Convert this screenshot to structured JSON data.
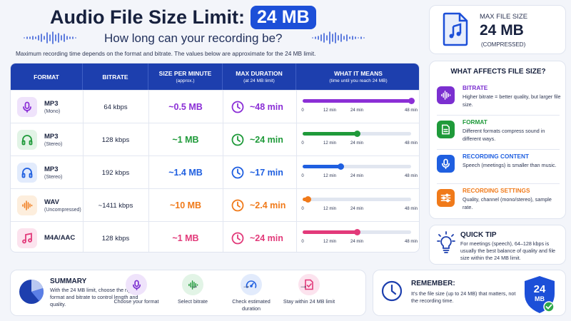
{
  "header": {
    "title": "Audio File Size Limit:",
    "title_pill": "24 MB",
    "subtitle": "How long can your recording be?",
    "intro": "Maximum recording time depends on the format and bitrate. The values below are approximate for the 24 MB limit."
  },
  "max_card": {
    "label": "MAX FILE SIZE",
    "value": "24 MB",
    "note": "(COMPRESSED)"
  },
  "table": {
    "headers": {
      "format": "FORMAT",
      "bitrate": "BITRATE",
      "size": "SIZE PER MINUTE",
      "size_sub": "(approx.)",
      "duration": "MAX DURATION",
      "duration_sub": "(at 24 MB limit)",
      "means": "WHAT IT MEANS",
      "means_sub": "(time until you reach 24 MB)"
    },
    "tick_labels": [
      "0",
      "12 min",
      "24 min",
      "48 min"
    ],
    "rows": [
      {
        "format": "MP3",
        "sub": "(Mono)",
        "bitrate": "64 kbps",
        "size": "~0.5 MB",
        "duration": "~48 min",
        "fraction": 1.0,
        "color": "#8b2fd6",
        "tint": "#efe3fb",
        "icon": "microphone-icon"
      },
      {
        "format": "MP3",
        "sub": "(Stereo)",
        "bitrate": "128 kbps",
        "size": "~1 MB",
        "duration": "~24 min",
        "fraction": 0.5,
        "color": "#1f9a3a",
        "tint": "#e2f4e6",
        "icon": "headphones-icon"
      },
      {
        "format": "MP3",
        "sub": "(Stereo)",
        "bitrate": "192 kbps",
        "size": "~1.4 MB",
        "duration": "~17 min",
        "fraction": 0.354,
        "color": "#1f5fe0",
        "tint": "#e2ebfc",
        "icon": "headphones-icon"
      },
      {
        "format": "WAV",
        "sub": "(Uncompressed)",
        "bitrate": "~1411 kbps",
        "size": "~10 MB",
        "duration": "~2.4 min",
        "fraction": 0.05,
        "color": "#f07a1a",
        "tint": "#fdeedd",
        "icon": "waveform-icon"
      },
      {
        "format": "M4A/AAC",
        "sub": "",
        "bitrate": "128 kbps",
        "size": "~1 MB",
        "duration": "~24 min",
        "fraction": 0.5,
        "color": "#e23a7a",
        "tint": "#fce3ee",
        "icon": "music-note-icon"
      }
    ]
  },
  "affects": {
    "title": "WHAT AFFECTS FILE SIZE?",
    "items": [
      {
        "title": "BITRATE",
        "desc": "Higher bitrate = better quality, but larger file size.",
        "color": "#7b2fd0",
        "icon": "waveform-icon"
      },
      {
        "title": "FORMAT",
        "desc": "Different formats compress sound in different ways.",
        "color": "#1f9a3a",
        "icon": "document-icon"
      },
      {
        "title": "RECORDING CONTENT",
        "desc": "Speech (meetings) is smaller than music.",
        "color": "#1f5fe0",
        "icon": "microphone-icon"
      },
      {
        "title": "RECORDING SETTINGS",
        "desc": "Quality, channel (mono/stereo), sample rate.",
        "color": "#f07a1a",
        "icon": "sliders-icon"
      }
    ]
  },
  "tip": {
    "title": "QUICK TIP",
    "desc": "For meetings (speech), 64–128 kbps is usually the best balance of quality and file size within the 24 MB limit."
  },
  "summary": {
    "title": "SUMMARY",
    "desc": "With the 24 MB limit, choose the right format and bitrate to control length and quality.",
    "steps": [
      {
        "label": "Choose your format",
        "color": "#7b2fd0",
        "tint": "#efe3fb"
      },
      {
        "label": "Select bitrate",
        "color": "#1f9a3a",
        "tint": "#e2f4e6"
      },
      {
        "label": "Check estimated duration",
        "color": "#1f5fe0",
        "tint": "#e2ebfc"
      },
      {
        "label": "Stay within 24 MB limit",
        "color": "#e23a7a",
        "tint": "#fce3ee"
      }
    ]
  },
  "remember": {
    "title": "REMEMBER:",
    "desc": "It's the file size (up to 24 MB) that matters, not the recording time.",
    "badge_value": "24",
    "badge_unit": "MB"
  },
  "colors": {
    "navy": "#1d3fae",
    "brand_blue": "#1c4fd8"
  }
}
